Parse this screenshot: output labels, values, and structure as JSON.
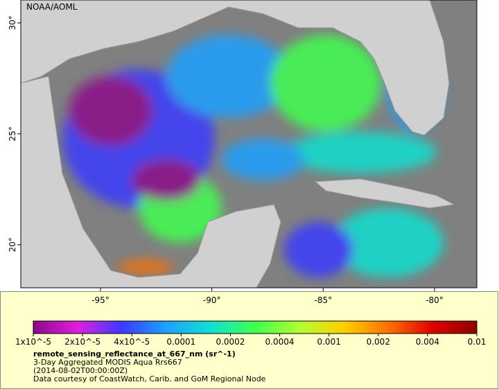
{
  "map": {
    "title": "NOAA/AOML",
    "xticks": [
      {
        "value": -95,
        "label": "-95°"
      },
      {
        "value": -90,
        "label": "-90°"
      },
      {
        "value": -85,
        "label": "-85°"
      },
      {
        "value": -80,
        "label": "-80°"
      }
    ],
    "yticks": [
      {
        "value": 20,
        "label": "20°"
      },
      {
        "value": 25,
        "label": "25°"
      },
      {
        "value": 30,
        "label": "30°"
      }
    ],
    "xlim": [
      -98.58,
      -78.1
    ],
    "ylim": [
      18.06,
      31.03
    ]
  },
  "colorbar": {
    "ticks": [
      {
        "value": 1e-05,
        "label": "1x10^-5"
      },
      {
        "value": 2e-05,
        "label": "2x10^-5"
      },
      {
        "value": 4e-05,
        "label": "4x10^-5"
      },
      0.0001,
      0.0002,
      0.0004,
      0.001,
      0.002,
      0.004,
      0.01
    ],
    "colors": [
      "#8b0a8b",
      "#e020e0",
      "#3a3aff",
      "#1ea0ff",
      "#10e0d0",
      "#40ff50",
      "#b0ff30",
      "#ffd000",
      "#ff7000",
      "#e00000",
      "#8b0000"
    ]
  },
  "caption": {
    "variable": "remote_sensing_reflectance_at_667_nm (sr^-1)",
    "dataset": "3-Day Aggregated MODIS Aqua Rrs667",
    "time": "(2014-08-02T00:00:00Z)",
    "credit": "Data courtesy of CoastWatch, Carib. and GoM Regional Node"
  }
}
